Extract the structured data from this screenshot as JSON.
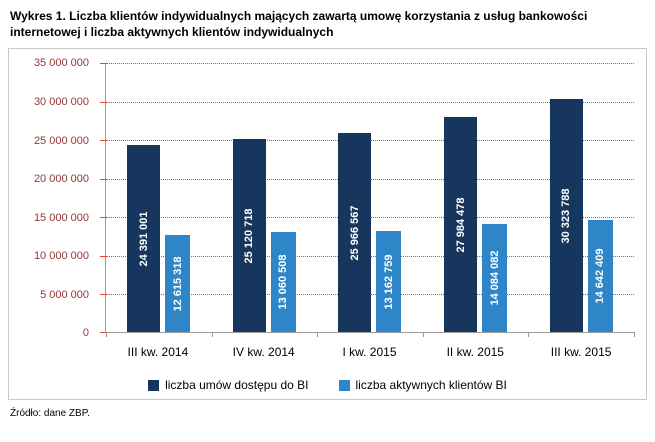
{
  "title": "Wykres 1. Liczba klientów indywidualnych mających zawartą umowę korzystania z usług bankowości internetowej i liczba aktywnych klientów indywidualnych",
  "source": "Źródło: dane ZBP.",
  "chart_data": {
    "type": "bar",
    "categories": [
      "III kw. 2014",
      "IV kw. 2014",
      "I kw. 2015",
      "II kw. 2015",
      "III kw. 2015"
    ],
    "series": [
      {
        "name": "liczba umów dostępu do BI",
        "color": "#17365d",
        "values": [
          24391001,
          25120718,
          25966567,
          27984478,
          30323788
        ],
        "labels": [
          "24 391 001",
          "25 120 718",
          "25 966 567",
          "27 984 478",
          "30 323 788"
        ]
      },
      {
        "name": "liczba aktywnych klientów BI",
        "color": "#2e86c8",
        "values": [
          12615318,
          13060508,
          13162759,
          14084082,
          14642409
        ],
        "labels": [
          "12 615 318",
          "13 060 508",
          "13 162 759",
          "14 084 082",
          "14 642 409"
        ]
      }
    ],
    "ylim": [
      0,
      35000000
    ],
    "ytick_step": 5000000,
    "ytick_labels": [
      "0",
      "5 000 000",
      "10 000 000",
      "15 000 000",
      "20 000 000",
      "25 000 000",
      "30 000 000",
      "35 000 000"
    ],
    "grid": "horizontal-dotted",
    "grid_color": "#e8443a",
    "axis_label_color": "#943634",
    "legend_position": "bottom"
  }
}
